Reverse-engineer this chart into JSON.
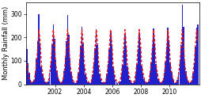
{
  "title": "",
  "ylabel": "Monthly Rainfall (mm)",
  "xlabel": "",
  "bar_color": "#2020cc",
  "line_color": "#ee1111",
  "background_color": "#ffffff",
  "plot_bg_color": "#ffffff",
  "ylim": [
    0,
    350
  ],
  "xtick_years": [
    2002,
    2004,
    2006,
    2008,
    2010
  ],
  "ylabel_fontsize": 6,
  "tick_fontsize": 5.5,
  "monthly_precip": [
    150,
    90,
    50,
    20,
    10,
    12,
    18,
    55,
    110,
    185,
    300,
    170,
    75,
    45,
    25,
    12,
    8,
    9,
    14,
    48,
    95,
    170,
    255,
    195,
    105,
    60,
    28,
    14,
    7,
    9,
    18,
    55,
    115,
    185,
    295,
    210,
    115,
    52,
    22,
    10,
    6,
    7,
    16,
    50,
    105,
    165,
    245,
    175,
    88,
    42,
    18,
    10,
    5,
    7,
    13,
    44,
    88,
    155,
    235,
    168,
    82,
    46,
    22,
    10,
    6,
    8,
    14,
    46,
    88,
    152,
    228,
    165,
    78,
    42,
    20,
    9,
    5,
    7,
    12,
    42,
    82,
    148,
    218,
    160,
    76,
    40,
    18,
    9,
    5,
    7,
    12,
    42,
    85,
    152,
    222,
    162,
    80,
    45,
    22,
    10,
    6,
    8,
    14,
    48,
    92,
    158,
    238,
    170,
    86,
    48,
    24,
    11,
    6,
    8,
    16,
    50,
    95,
    162,
    242,
    180,
    92,
    52,
    26,
    12,
    7,
    9,
    18,
    52,
    98,
    168,
    340,
    245,
    98,
    56,
    28,
    13,
    7,
    9,
    16,
    50,
    92,
    162,
    242,
    255
  ],
  "monthly_avg": [
    88,
    52,
    28,
    13,
    7,
    8,
    14,
    46,
    92,
    157,
    233,
    182,
    88,
    52,
    28,
    13,
    7,
    8,
    14,
    46,
    92,
    157,
    233,
    182,
    88,
    52,
    28,
    13,
    7,
    8,
    14,
    46,
    92,
    157,
    233,
    182,
    88,
    52,
    28,
    13,
    7,
    8,
    14,
    46,
    92,
    157,
    233,
    182,
    88,
    52,
    28,
    13,
    7,
    8,
    14,
    46,
    92,
    157,
    233,
    182,
    88,
    52,
    28,
    13,
    7,
    8,
    14,
    46,
    92,
    157,
    233,
    182,
    88,
    52,
    28,
    13,
    7,
    8,
    14,
    46,
    92,
    157,
    233,
    182,
    88,
    52,
    28,
    13,
    7,
    8,
    14,
    46,
    92,
    157,
    233,
    182,
    88,
    52,
    28,
    13,
    7,
    8,
    14,
    46,
    92,
    157,
    233,
    182,
    88,
    52,
    28,
    13,
    7,
    8,
    14,
    46,
    92,
    157,
    233,
    182,
    88,
    52,
    28,
    13,
    7,
    8,
    14,
    46,
    92,
    157,
    233,
    182,
    88,
    52,
    28,
    13,
    7,
    8,
    14,
    46,
    92,
    157,
    233,
    182
  ]
}
